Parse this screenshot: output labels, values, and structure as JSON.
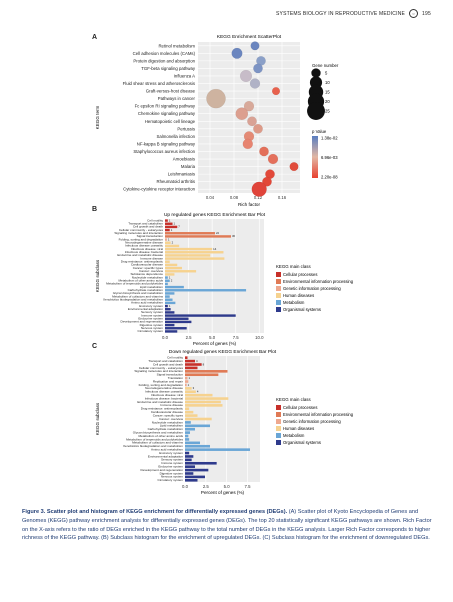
{
  "header": {
    "journal": "SYSTEMS BIOLOGY IN REPRODUCTIVE MEDICINE",
    "page_number": "195"
  },
  "caption": {
    "label": "Figure 3.",
    "title": "Scatter plot and histogram of KEGG enrichment for differentially expressed genes (DEGs).",
    "body": " (A) Scatter plot of Kyoto Encyclopedia of Genes and Genomes (KEGG) pathway enrichment analysis for differentially expressed genes (DEGs). The top 20 statistically significant KEGG pathways are shown. Rich Factor on the X-axis refers to the ratio of DEGs enriched in the KEGG pathway to the total number of DEGs in the KEGG analysis. Larger Rich Factor corresponds to higher richness of the KEGG pathway. (B) Subclass histogram for the enrichment of upregulated DEGs. (C) Subclass histogram for the enrichment of downregulated DEGs."
  },
  "class_colors": {
    "Cellular processes": "#c7302a",
    "Environmental information processing": "#e07a55",
    "Genetic information processing": "#eea88e",
    "Human diseases": "#f6d28f",
    "Metabolism": "#6aa6d6",
    "Organismal systems": "#2e3a8c"
  },
  "chart_data": [
    {
      "panel": "A",
      "type": "scatter",
      "title": "KEGG Enrichment ScatterPlot",
      "xlabel": "Rich factor",
      "ylabel": "KEGG term",
      "xticks": [
        "0.04",
        "0.08",
        "0.12",
        "0.16"
      ],
      "xlim": [
        0.02,
        0.19
      ],
      "categories": [
        "Retinol metabolism",
        "Cell adhesion molecules (CAMs)",
        "Protein digestion and absorption",
        "TGF-beta signaling pathway",
        "Influenza A",
        "Fluid shear stress and atherosclerosis",
        "Graft-versus-host disease",
        "Pathways in cancer",
        "Fc epsilon RI signaling pathway",
        "Chemokine signaling pathway",
        "Hematopoietic cell lineage",
        "Pertussis",
        "Salmonella infection",
        "NF-kappa B signaling pathway",
        "Staphylococcus aureus infection",
        "Amoebiasis",
        "Malaria",
        "Leishmaniasis",
        "Rheumatoid arthritis",
        "Cytokine-cytokine receptor interaction"
      ],
      "x": [
        0.115,
        0.085,
        0.125,
        0.12,
        0.1,
        0.115,
        0.15,
        0.05,
        0.105,
        0.093,
        0.11,
        0.12,
        0.105,
        0.103,
        0.13,
        0.145,
        0.18,
        0.14,
        0.135,
        0.122
      ],
      "gene_number": [
        4,
        7,
        5,
        5,
        9,
        6,
        3,
        29,
        6,
        10,
        5,
        5,
        6,
        6,
        5,
        6,
        4,
        5,
        5,
        16
      ],
      "pvalue_color": [
        "#6b86bf",
        "#6b86bf",
        "#8ba0c8",
        "#7d94c4",
        "#c7bcc8",
        "#b0b2c6",
        "#e8614d",
        "#ceb3a0",
        "#d8a99a",
        "#dc9f8f",
        "#d9a295",
        "#dd9a88",
        "#e48a75",
        "#e78470",
        "#e3705a",
        "#e4705c",
        "#e04a39",
        "#e2493a",
        "#e24838",
        "#e0443a"
      ],
      "size_legend": {
        "title": "Gene number",
        "values": [
          "5",
          "10",
          "15",
          "20",
          "25"
        ]
      },
      "color_legend": {
        "title": "p Value",
        "labels": [
          "1.38e-02",
          "6.96e-03",
          "2.20e-08"
        ],
        "colors": [
          "#5a7ec0",
          "#e2b7a4",
          "#e8402f"
        ]
      }
    },
    {
      "panel": "B",
      "type": "bar",
      "orientation": "horizontal",
      "title": "Up regulated genes KEGG Enrichment Bar Plot",
      "xlabel": "Percent of genes (%)",
      "ylabel": "KEGG subclass",
      "xticks": [
        "0.0",
        "2.5",
        "5.0",
        "7.5",
        "10.0"
      ],
      "xlim": [
        0,
        10.5
      ],
      "legend_title": "KEGG main class",
      "categories": [
        "Cell motility",
        "Transport and catabolism",
        "Cell growth and death",
        "Cellular community - eukaryotes",
        "Signaling molecules and interaction",
        "Signal transduction",
        "Folding, sorting and degradation",
        "Neurodegenerative disease",
        "Infectious disease: parasitic",
        "Infectious disease: viral",
        "Infectious disease: bacterial",
        "Endocrine and metabolic disease",
        "Immune disease",
        "Drug resistance: antineoplastic",
        "Cardiovascular disease",
        "Cancer: specific types",
        "Cancer: overview",
        "Substance dependence",
        "Nucleotide metabolism",
        "Metabolism of other amino acids",
        "Metabolism of terpenoids and polyketides",
        "Lipid metabolism",
        "Carbohydrate metabolism",
        "Glycan biosynthesis and metabolism",
        "Metabolism of cofactors and vitamins",
        "Xenobiotics biodegradation and metabolism",
        "Amino acid metabolism",
        "Excretory system",
        "Environmental adaptation",
        "Sensory system",
        "Immune system",
        "Endocrine system",
        "Development and regeneration",
        "Digestive system",
        "Nervous system",
        "Circulatory system"
      ],
      "classes": [
        "Cellular processes",
        "Cellular processes",
        "Cellular processes",
        "Cellular processes",
        "Environmental information processing",
        "Environmental information processing",
        "Genetic information processing",
        "Human diseases",
        "Human diseases",
        "Human diseases",
        "Human diseases",
        "Human diseases",
        "Human diseases",
        "Human diseases",
        "Human diseases",
        "Human diseases",
        "Human diseases",
        "Human diseases",
        "Metabolism",
        "Metabolism",
        "Metabolism",
        "Metabolism",
        "Metabolism",
        "Metabolism",
        "Metabolism",
        "Metabolism",
        "Metabolism",
        "Organismal systems",
        "Organismal systems",
        "Organismal systems",
        "Organismal systems",
        "Organismal systems",
        "Organismal systems",
        "Organismal systems",
        "Organismal systems",
        "Organismal systems"
      ],
      "values": [
        0.3,
        0.8,
        1.3,
        0.5,
        5.3,
        7.0,
        0.2,
        0.6,
        1.5,
        5.0,
        6.2,
        4.8,
        6.3,
        0.5,
        1.3,
        1.8,
        3.3,
        1.0,
        0.3,
        0.5,
        0.3,
        2.0,
        8.6,
        1.0,
        0.5,
        0.8,
        1.1,
        0.3,
        0.6,
        1.0,
        7.5,
        2.5,
        2.8,
        1.0,
        2.3,
        1.3
      ],
      "data_labels": [
        "1",
        "1",
        "7",
        "1",
        "22",
        "30",
        "1",
        "2",
        "",
        "14",
        "",
        "",
        "",
        "",
        "",
        "",
        "",
        "",
        "1",
        "2",
        "",
        "",
        "",
        "",
        "",
        "",
        "",
        "1",
        "",
        "",
        "",
        "",
        "",
        "",
        "",
        ""
      ]
    },
    {
      "panel": "C",
      "type": "bar",
      "orientation": "horizontal",
      "title": "Down regulated genes KEGG Enrichment Bar Plot",
      "xlabel": "Percent of genes (%)",
      "ylabel": "KEGG subclass",
      "xticks": [
        "0.0",
        "2.5",
        "5.0",
        "7.5"
      ],
      "xlim": [
        0,
        9
      ],
      "legend_title": "KEGG main class",
      "categories": [
        "Cell motility",
        "Transport and catabolism",
        "Cell growth and death",
        "Cellular community - eukaryotes",
        "Signaling molecules and interaction",
        "Signal transduction",
        "Translation",
        "Replication and repair",
        "Folding, sorting and degradation",
        "Neurodegenerative disease",
        "Infectious disease: parasitic",
        "Infectious disease: viral",
        "Infectious disease: bacterial",
        "Endocrine and metabolic disease",
        "Immune disease",
        "Drug resistance: antineoplastic",
        "Cardiovascular disease",
        "Cancer: specific types",
        "Cancer: overview",
        "Nucleotide metabolism",
        "Lipid metabolism",
        "Carbohydrate metabolism",
        "Glycan biosynthesis and metabolism",
        "Metabolism of other amino acids",
        "Metabolism of terpenoids and polyketides",
        "Metabolism of cofactors and vitamins",
        "Xenobiotics biodegradation and metabolism",
        "Amino acid metabolism",
        "Excretory system",
        "Environmental adaptation",
        "Sensory system",
        "Immune system",
        "Endocrine system",
        "Development and regeneration",
        "Digestive system",
        "Nervous system",
        "Circulatory system"
      ],
      "classes": [
        "Cellular processes",
        "Cellular processes",
        "Cellular processes",
        "Cellular processes",
        "Environmental information processing",
        "Environmental information processing",
        "Genetic information processing",
        "Genetic information processing",
        "Genetic information processing",
        "Human diseases",
        "Human diseases",
        "Human diseases",
        "Human diseases",
        "Human diseases",
        "Human diseases",
        "Human diseases",
        "Human diseases",
        "Human diseases",
        "Human diseases",
        "Metabolism",
        "Metabolism",
        "Metabolism",
        "Metabolism",
        "Metabolism",
        "Metabolism",
        "Metabolism",
        "Metabolism",
        "Metabolism",
        "Organismal systems",
        "Organismal systems",
        "Organismal systems",
        "Organismal systems",
        "Organismal systems",
        "Organismal systems",
        "Organismal systems",
        "Organismal systems",
        "Organismal systems"
      ],
      "values": [
        0.3,
        1.2,
        2.0,
        1.5,
        5.1,
        4.0,
        0.3,
        0.4,
        0.2,
        0.8,
        1.3,
        3.3,
        5.2,
        4.3,
        4.5,
        0.5,
        1.0,
        1.5,
        3.2,
        0.7,
        3.0,
        1.2,
        0.6,
        0.4,
        0.5,
        1.8,
        3.0,
        7.8,
        0.5,
        1.0,
        0.8,
        3.8,
        1.2,
        2.8,
        1.0,
        2.4,
        1.5
      ],
      "data_labels": [
        "",
        "4",
        "8",
        "",
        "",
        "",
        "1",
        "",
        "1",
        "3",
        "4",
        "",
        "",
        "",
        "",
        "",
        "",
        "",
        "",
        "",
        "",
        "",
        "",
        "",
        "",
        "",
        "",
        "",
        "",
        "",
        "",
        "",
        "",
        "",
        "",
        "",
        ""
      ]
    }
  ]
}
